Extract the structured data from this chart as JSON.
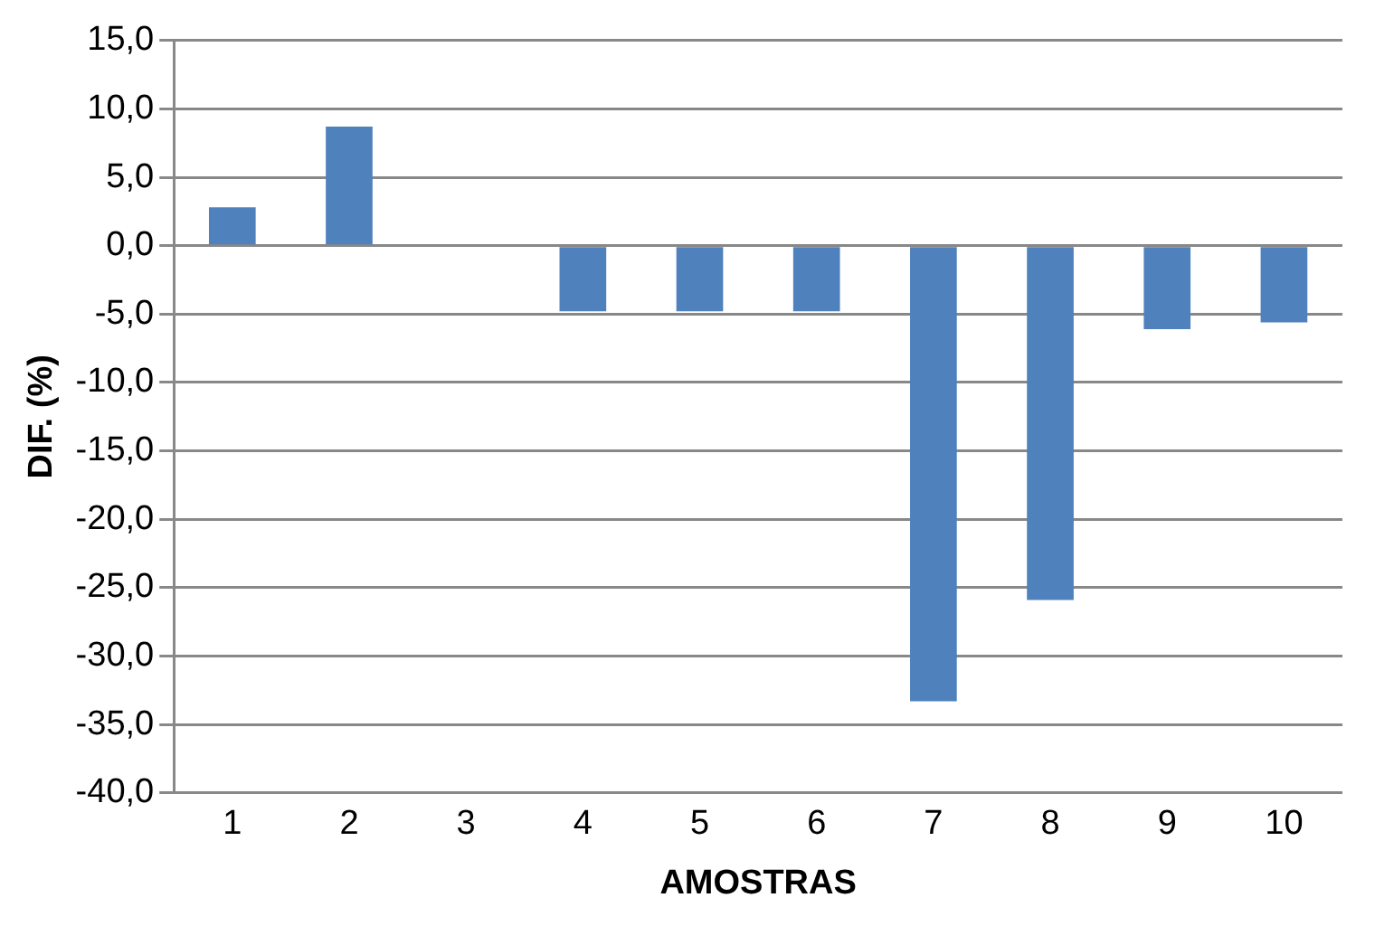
{
  "chart_data": {
    "type": "bar",
    "xlabel": "AMOSTRAS",
    "ylabel": "DIF. (%)",
    "categories": [
      "1",
      "2",
      "3",
      "4",
      "5",
      "6",
      "7",
      "8",
      "9",
      "10"
    ],
    "values": [
      2.8,
      8.7,
      0,
      -4.8,
      -4.8,
      -4.8,
      -33.3,
      -25.9,
      -6.1,
      -5.6
    ],
    "color": "#4f81bd",
    "ylim": [
      -40,
      15
    ],
    "yticks": [
      {
        "value": 15,
        "label": "15,0"
      },
      {
        "value": 10,
        "label": "10,0"
      },
      {
        "value": 5,
        "label": "5,0"
      },
      {
        "value": 0,
        "label": "0,0"
      },
      {
        "value": -5,
        "label": "-5,0"
      },
      {
        "value": -10,
        "label": "-10,0"
      },
      {
        "value": -15,
        "label": "-15,0"
      },
      {
        "value": -20,
        "label": "-20,0"
      },
      {
        "value": -25,
        "label": "-25,0"
      },
      {
        "value": -30,
        "label": "-30,0"
      },
      {
        "value": -35,
        "label": "-35,0"
      },
      {
        "value": -40,
        "label": "-40,0"
      }
    ],
    "grid": "y",
    "legend": false
  }
}
